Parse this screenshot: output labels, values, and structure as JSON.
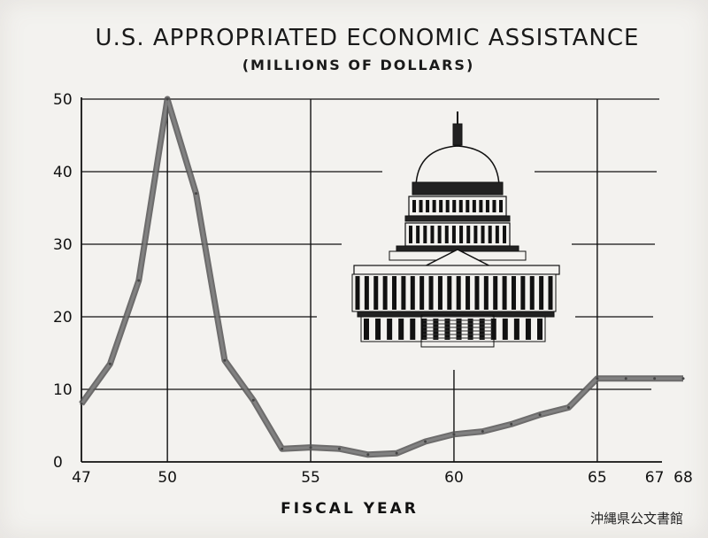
{
  "chart_data": {
    "type": "line",
    "title": "U.S. APPROPRIATED ECONOMIC ASSISTANCE",
    "subtitle": "(MILLIONS OF DOLLARS)",
    "xlabel": "FISCAL YEAR",
    "ylabel": "",
    "xlim": [
      47,
      68
    ],
    "ylim": [
      0,
      50
    ],
    "x_ticks": [
      47,
      50,
      55,
      60,
      65,
      67,
      68
    ],
    "y_ticks": [
      0,
      10,
      20,
      30,
      40,
      50
    ],
    "grid": true,
    "colors": {
      "line": "#6f6f6f",
      "axis": "#111111",
      "paper": "#f3f2ef"
    },
    "series": [
      {
        "x": [
          47,
          48,
          49,
          50,
          51,
          52,
          53,
          54,
          55,
          56,
          57,
          58,
          59,
          60,
          61,
          62,
          63,
          64,
          65,
          66,
          67,
          68
        ],
        "y": [
          8,
          13.5,
          25,
          50,
          37,
          14,
          8.5,
          1.8,
          2,
          1.8,
          1,
          1.2,
          2.8,
          3.8,
          4.2,
          5.2,
          6.5,
          7.5,
          11.5,
          11.5,
          11.5,
          11.5
        ]
      }
    ]
  },
  "illustration": {
    "icon": "us-capitol-icon"
  },
  "watermark": "沖縄県公文書館"
}
